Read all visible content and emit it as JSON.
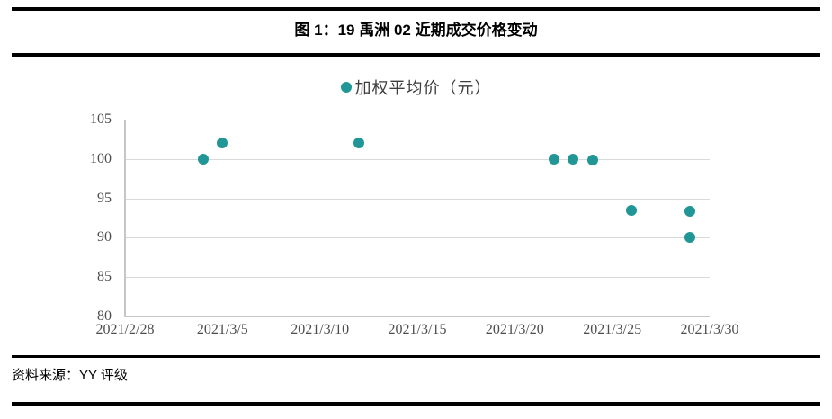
{
  "figure": {
    "title": "图 1：19 禹洲 02 近期成交价格变动",
    "source": "资料来源：YY 评级"
  },
  "colors": {
    "accent": "#209696",
    "gridline": "#D9D9D9",
    "axis_line": "#C6C6C6",
    "tick_text": "#4D4D4D",
    "rule": "#000000"
  },
  "chart_data": {
    "type": "scatter",
    "title": "图 1：19 禹洲 02 近期成交价格变动",
    "legend": [
      {
        "label": "加权平均价（元）",
        "color": "#209696",
        "position": "top-center"
      }
    ],
    "x_tick_labels": [
      "2021/2/28",
      "2021/3/5",
      "2021/3/10",
      "2021/3/15",
      "2021/3/20",
      "2021/3/25",
      "2021/3/30"
    ],
    "y_ticks": [
      80,
      85,
      90,
      95,
      100,
      105
    ],
    "ylim": [
      80,
      105
    ],
    "grid": "horizontal-only",
    "xlabel": "",
    "ylabel": "",
    "points": [
      {
        "date": "2021/3/4",
        "value": 100.0
      },
      {
        "date": "2021/3/5",
        "value": 102.0
      },
      {
        "date": "2021/3/12",
        "value": 102.0
      },
      {
        "date": "2021/3/22",
        "value": 100.0
      },
      {
        "date": "2021/3/23",
        "value": 100.0
      },
      {
        "date": "2021/3/24",
        "value": 99.9
      },
      {
        "date": "2021/3/26",
        "value": 93.5
      },
      {
        "date": "2021/3/29",
        "value": 93.4
      },
      {
        "date": "2021/3/29",
        "value": 90.1
      }
    ]
  }
}
